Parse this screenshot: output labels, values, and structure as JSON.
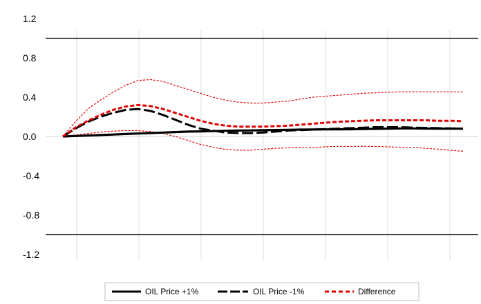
{
  "chart_data": {
    "type": "line",
    "title": "",
    "xlabel": "",
    "ylabel": "",
    "ylim": [
      -1.2,
      1.2
    ],
    "yticks": [
      1.2,
      0.8,
      0.4,
      0.0,
      -0.4,
      -0.8,
      -1.2
    ],
    "ytick_labels": [
      "1.2",
      "0.8",
      "0.4",
      "0.0",
      "-0.4",
      "-0.8",
      "-1.2"
    ],
    "x": [
      0,
      1,
      2,
      3,
      4,
      5,
      6,
      7,
      8,
      9,
      10,
      11,
      12,
      13,
      14,
      15,
      16,
      17,
      18,
      19,
      20,
      21,
      22,
      23,
      24,
      25,
      26,
      27,
      28,
      29,
      30,
      31,
      32
    ],
    "vertical_gridlines": "on",
    "horizontal_lines_at": [
      1.0,
      -1.0
    ],
    "zero_line": true,
    "legend_position": "bottom",
    "series": [
      {
        "name": "OIL Price +1%",
        "style": "solid",
        "color": "#000000",
        "values": [
          0,
          0.005,
          0.01,
          0.015,
          0.02,
          0.025,
          0.03,
          0.035,
          0.04,
          0.045,
          0.05,
          0.052,
          0.055,
          0.058,
          0.06,
          0.062,
          0.064,
          0.066,
          0.068,
          0.07,
          0.071,
          0.072,
          0.073,
          0.074,
          0.076,
          0.078,
          0.08,
          0.082,
          0.082,
          0.081,
          0.08,
          0.08,
          0.08
        ]
      },
      {
        "name": "OIL Price -1%",
        "style": "dashed",
        "color": "#000000",
        "values": [
          0,
          0.08,
          0.15,
          0.2,
          0.24,
          0.27,
          0.28,
          0.26,
          0.22,
          0.17,
          0.12,
          0.08,
          0.06,
          0.04,
          0.035,
          0.035,
          0.04,
          0.05,
          0.06,
          0.065,
          0.07,
          0.075,
          0.08,
          0.085,
          0.09,
          0.095,
          0.095,
          0.095,
          0.09,
          0.088,
          0.085,
          0.082,
          0.08
        ]
      },
      {
        "name": "Difference",
        "style": "dashed-bold",
        "color": "#e00000",
        "values": [
          0,
          0.09,
          0.16,
          0.22,
          0.27,
          0.305,
          0.32,
          0.31,
          0.28,
          0.24,
          0.2,
          0.16,
          0.13,
          0.11,
          0.1,
          0.1,
          0.1,
          0.105,
          0.11,
          0.12,
          0.13,
          0.14,
          0.15,
          0.155,
          0.16,
          0.165,
          0.165,
          0.165,
          0.165,
          0.165,
          0.16,
          0.16,
          0.155
        ]
      },
      {
        "name": "",
        "style": "thin-dashed",
        "color": "#e00000",
        "values": [
          0,
          0.15,
          0.28,
          0.37,
          0.45,
          0.52,
          0.57,
          0.58,
          0.56,
          0.52,
          0.48,
          0.44,
          0.4,
          0.37,
          0.35,
          0.34,
          0.34,
          0.35,
          0.36,
          0.38,
          0.4,
          0.41,
          0.42,
          0.43,
          0.44,
          0.445,
          0.45,
          0.455,
          0.455,
          0.455,
          0.455,
          0.455,
          0.455
        ]
      },
      {
        "name": "",
        "style": "thin-dashed",
        "color": "#e00000",
        "values": [
          0,
          0.015,
          0.03,
          0.045,
          0.055,
          0.06,
          0.06,
          0.05,
          0.03,
          0.0,
          -0.04,
          -0.08,
          -0.11,
          -0.13,
          -0.14,
          -0.14,
          -0.13,
          -0.12,
          -0.115,
          -0.11,
          -0.11,
          -0.105,
          -0.1,
          -0.1,
          -0.1,
          -0.1,
          -0.105,
          -0.11,
          -0.11,
          -0.12,
          -0.13,
          -0.14,
          -0.15
        ]
      }
    ]
  }
}
